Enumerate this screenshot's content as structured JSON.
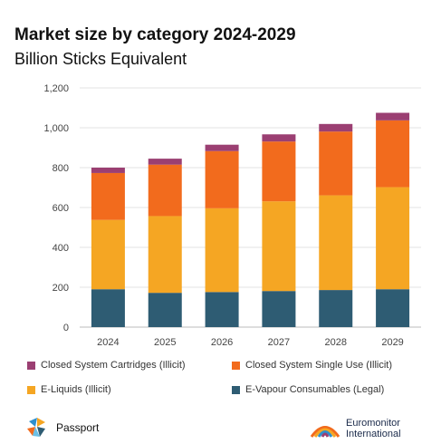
{
  "title": "Market size by category 2024-2029",
  "subtitle": "Billion Sticks Equivalent",
  "chart_data": {
    "type": "bar",
    "stacked": true,
    "categories": [
      "2024",
      "2025",
      "2026",
      "2027",
      "2028",
      "2029"
    ],
    "ylim": [
      0,
      1200
    ],
    "yticks": [
      "0",
      "200",
      "400",
      "600",
      "800",
      "1,000",
      "1,200"
    ],
    "ytick_values": [
      0,
      200,
      400,
      600,
      800,
      1000,
      1200
    ],
    "grid": true,
    "legend_position": "bottom",
    "series": [
      {
        "name": "E-Vapour Consumables (Legal)",
        "color": "#2e5c73",
        "values": [
          190,
          172,
          176,
          181,
          186,
          190
        ]
      },
      {
        "name": "E-Liquids (Illicit)",
        "color": "#f5a623",
        "values": [
          348,
          385,
          420,
          450,
          475,
          512
        ]
      },
      {
        "name": "Closed System Single Use (Illicit)",
        "color": "#f26b1d",
        "values": [
          235,
          258,
          287,
          300,
          320,
          335
        ]
      },
      {
        "name": "Closed System Cartridges (Illicit)",
        "color": "#9b3f72",
        "values": [
          27,
          30,
          32,
          36,
          38,
          38
        ]
      }
    ]
  },
  "legend_order": [
    3,
    2,
    1,
    0
  ],
  "branding": {
    "passport": "Passport",
    "euromonitor_line1": "Euromonitor",
    "euromonitor_line2": "International"
  }
}
